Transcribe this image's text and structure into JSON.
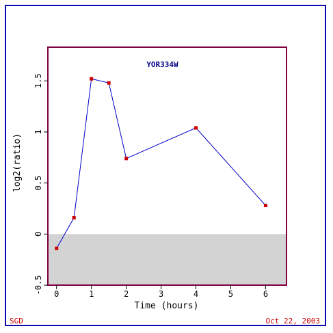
{
  "footer": {
    "left_label": "SGD",
    "right_label": "Oct 22, 2003"
  },
  "colors": {
    "frame": "#0a0ab0",
    "plot_border": "#800040",
    "line": "#0000cc",
    "marker": "#cc0000",
    "title": "#000088",
    "negative_band": "#d3d3d3",
    "footer_text": "#cc0000"
  },
  "chart_data": {
    "type": "line",
    "title": "YOR334W",
    "xlabel": "Time (hours)",
    "ylabel": "log2(ratio)",
    "xlim": [
      -0.25,
      6.6
    ],
    "ylim": [
      -0.5,
      1.83
    ],
    "x_ticks": [
      0,
      1,
      2,
      3,
      4,
      5,
      6
    ],
    "x_tick_labels": [
      "0",
      "1",
      "2",
      "3",
      "4",
      "5",
      "6"
    ],
    "y_ticks": [
      -0.5,
      0,
      0.5,
      1,
      1.5
    ],
    "y_tick_labels": [
      "-0.5",
      "0",
      "0.5",
      "1",
      "1.5"
    ],
    "negative_region_shaded": true,
    "grid": false,
    "series": [
      {
        "x": [
          0,
          0.5,
          1,
          1.5,
          2,
          4,
          6
        ],
        "y": [
          -0.14,
          0.16,
          1.52,
          1.48,
          0.74,
          1.04,
          0.28
        ]
      }
    ]
  }
}
